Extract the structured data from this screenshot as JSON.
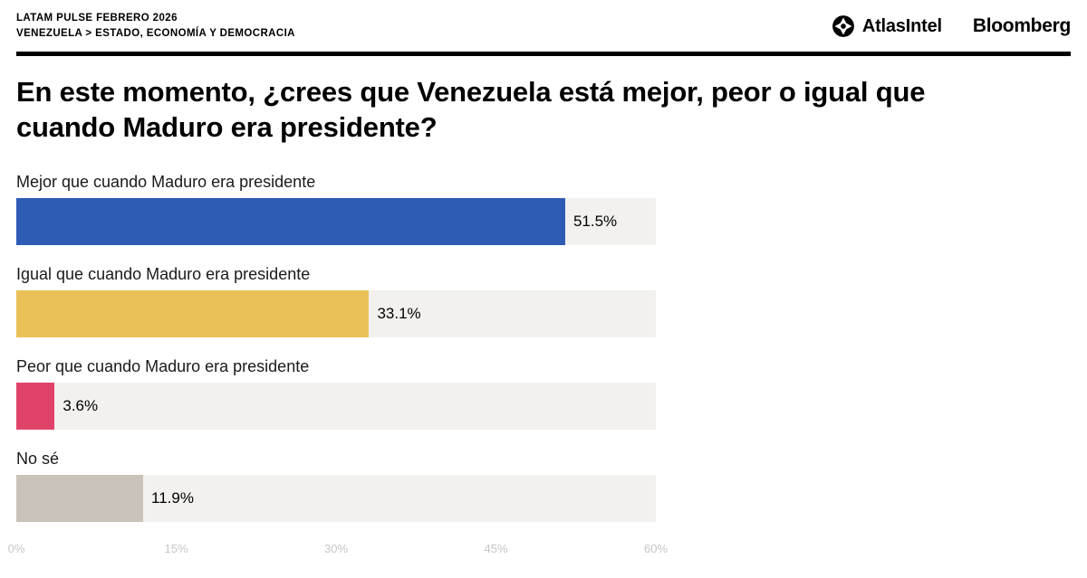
{
  "header": {
    "kicker_line1": "LATAM PULSE FEBRERO 2026",
    "kicker_line2": "VENEZUELA > ESTADO, ECONOMÍA Y DEMOCRACIA",
    "brand_atlasintel": "AtlasIntel",
    "brand_bloomberg": "Bloomberg"
  },
  "title": "En este momento, ¿crees que Venezuela está mejor, peor o igual que cuando Maduro era presidente?",
  "chart_data": {
    "type": "bar",
    "orientation": "horizontal",
    "categories": [
      "Mejor que cuando Maduro era presidente",
      "Igual que cuando Maduro era presidente",
      "Peor que cuando Maduro era presidente",
      "No sé"
    ],
    "values": [
      51.5,
      33.1,
      3.6,
      11.9
    ],
    "value_labels": [
      "51.5%",
      "33.1%",
      "3.6%",
      "11.9%"
    ],
    "colors": [
      "#2e5cb5",
      "#eac159",
      "#e0436a",
      "#c9c2b8"
    ],
    "track_color": "#f2f1ef",
    "xlim": [
      0,
      60
    ],
    "x_ticks": [
      "0%",
      "15%",
      "30%",
      "45%",
      "60%"
    ],
    "grid": false,
    "legend": false
  }
}
